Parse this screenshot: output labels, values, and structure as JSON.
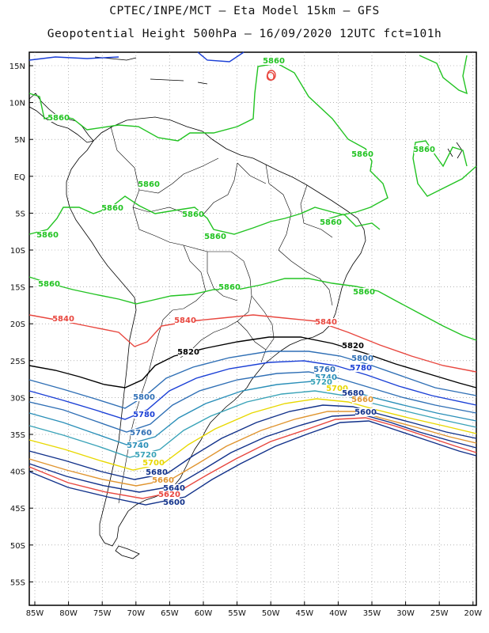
{
  "title_line1": "CPTEC/INPE/MCT –  Eta Model 15km – GFS",
  "title_line2": "Geopotential Height 500hPa – 16/09/2020 12UTC fct=101h",
  "lat_labels": [
    "15N",
    "10N",
    "5N",
    "EQ",
    "5S",
    "10S",
    "15S",
    "20S",
    "25S",
    "30S",
    "35S",
    "40S",
    "45S",
    "50S",
    "55S"
  ],
  "lon_labels": [
    "85W",
    "80W",
    "75W",
    "70W",
    "65W",
    "60W",
    "55W",
    "50W",
    "45W",
    "40W",
    "35W",
    "30W",
    "25W",
    "20W"
  ],
  "contour_labels": [
    {
      "text": "5860",
      "color": "#22c322"
    },
    {
      "text": "5860",
      "color": "#22c322"
    },
    {
      "text": "5860",
      "color": "#22c322"
    },
    {
      "text": "5860",
      "color": "#22c322"
    },
    {
      "text": "5860",
      "color": "#22c322"
    },
    {
      "text": "5860",
      "color": "#22c322"
    },
    {
      "text": "5860",
      "color": "#22c322"
    },
    {
      "text": "5860",
      "color": "#22c322"
    },
    {
      "text": "5860",
      "color": "#22c322"
    },
    {
      "text": "5860",
      "color": "#22c322"
    },
    {
      "text": "5860",
      "color": "#22c322"
    },
    {
      "text": "5860",
      "color": "#22c322"
    },
    {
      "text": "5860",
      "color": "#22c322"
    },
    {
      "text": "5840",
      "color": "#e8473f"
    },
    {
      "text": "5840",
      "color": "#e8473f"
    },
    {
      "text": "5840",
      "color": "#e8473f"
    },
    {
      "text": "5820",
      "color": "#000000"
    },
    {
      "text": "5820",
      "color": "#000000"
    },
    {
      "text": "5800",
      "color": "#2f6fb5"
    },
    {
      "text": "5780",
      "color": "#1a3fd6"
    },
    {
      "text": "5760",
      "color": "#2f6fb5"
    },
    {
      "text": "5740",
      "color": "#2a8fb8"
    },
    {
      "text": "5720",
      "color": "#3aa3b8"
    },
    {
      "text": "5700",
      "color": "#e8d800"
    },
    {
      "text": "5680",
      "color": "#11318a"
    },
    {
      "text": "5660",
      "color": "#e09530"
    },
    {
      "text": "5640",
      "color": "#11318a"
    },
    {
      "text": "5620",
      "color": "#e8473f"
    },
    {
      "text": "5600",
      "color": "#11318a"
    },
    {
      "text": "5800",
      "color": "#2f6fb5"
    },
    {
      "text": "5780",
      "color": "#1a3fd6"
    },
    {
      "text": "5760",
      "color": "#2f6fb5"
    },
    {
      "text": "5740",
      "color": "#2a8fb8"
    },
    {
      "text": "5720",
      "color": "#3aa3b8"
    },
    {
      "text": "5700",
      "color": "#e8d800"
    },
    {
      "text": "5680",
      "color": "#11318a"
    },
    {
      "text": "5660",
      "color": "#e09530"
    },
    {
      "text": "5600",
      "color": "#11318a"
    }
  ],
  "center_symbol": {
    "text": "O",
    "color": "#e8473f"
  },
  "colors": {
    "c5860": "#22c322",
    "c5840": "#e8473f",
    "c5820": "#000000",
    "c5800": "#2f6fb5",
    "c5780": "#1a3fd6",
    "c5760": "#2f6fb5",
    "c5740": "#2a8fb8",
    "c5720": "#3aa3b8",
    "c5700": "#e8d800",
    "c5680": "#11318a",
    "c5660": "#e09530",
    "c5640": "#11318a",
    "c5620": "#e8473f",
    "c5600": "#11318a",
    "c5880": "#1a3fd6"
  }
}
